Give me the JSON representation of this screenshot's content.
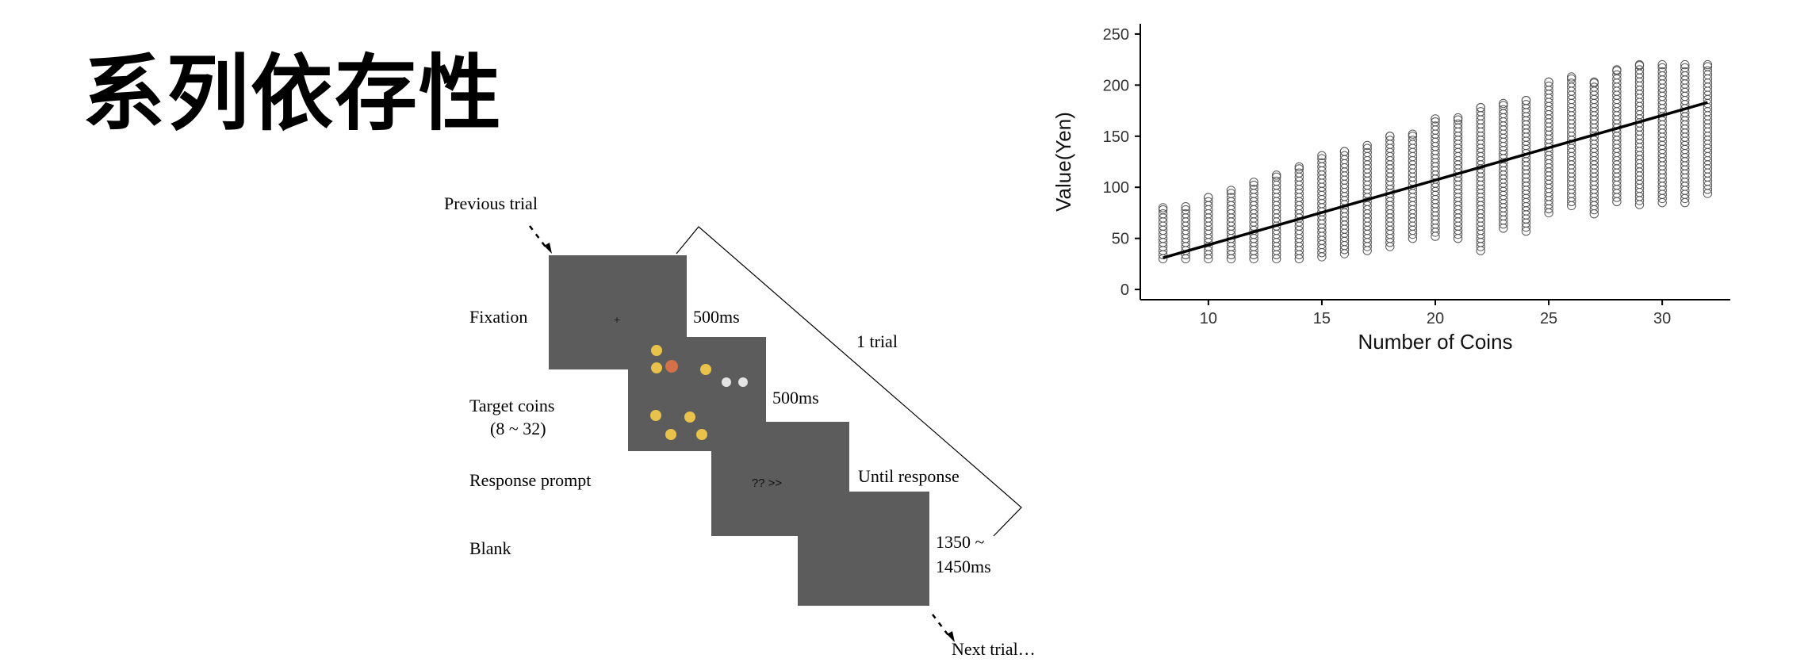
{
  "slide": {
    "title": "系列依存性"
  },
  "diagram": {
    "previous_trial": "Previous trial",
    "next_trial": "Next trial…",
    "one_trial": "1 trial",
    "steps": [
      {
        "label": "Fixation",
        "duration": "500ms",
        "screen_text": "+"
      },
      {
        "label": "Target coins",
        "sublabel": "(8 ~ 32)",
        "duration": "500ms"
      },
      {
        "label": "Response prompt",
        "duration": "Until response",
        "screen_text": "?? >>"
      },
      {
        "label": "Blank",
        "duration_line1": "1350 ~",
        "duration_line2": "1450ms"
      }
    ],
    "screen_color": "#5c5c5c",
    "coin_colors": {
      "gold": "#e8c24a",
      "copper": "#d4704a",
      "silver": "#e4e4e4"
    }
  },
  "chart_data": {
    "type": "scatter",
    "xlabel": "Number of Coins",
    "ylabel": "Value(Yen)",
    "xlim": [
      7,
      33
    ],
    "ylim": [
      -10,
      260
    ],
    "xticks": [
      10,
      15,
      20,
      25,
      30
    ],
    "yticks": [
      0,
      50,
      100,
      150,
      200,
      250
    ],
    "grid": false,
    "point_ranges": [
      {
        "x": 8,
        "ymin": 30,
        "ymax": 80
      },
      {
        "x": 9,
        "ymin": 30,
        "ymax": 81
      },
      {
        "x": 10,
        "ymin": 30,
        "ymax": 90
      },
      {
        "x": 11,
        "ymin": 30,
        "ymax": 97
      },
      {
        "x": 12,
        "ymin": 30,
        "ymax": 105
      },
      {
        "x": 13,
        "ymin": 30,
        "ymax": 112
      },
      {
        "x": 14,
        "ymin": 30,
        "ymax": 120
      },
      {
        "x": 15,
        "ymin": 32,
        "ymax": 131
      },
      {
        "x": 16,
        "ymin": 35,
        "ymax": 135
      },
      {
        "x": 17,
        "ymin": 38,
        "ymax": 141
      },
      {
        "x": 18,
        "ymin": 42,
        "ymax": 150
      },
      {
        "x": 19,
        "ymin": 50,
        "ymax": 152
      },
      {
        "x": 20,
        "ymin": 52,
        "ymax": 167
      },
      {
        "x": 21,
        "ymin": 50,
        "ymax": 168
      },
      {
        "x": 22,
        "ymin": 38,
        "ymax": 178
      },
      {
        "x": 23,
        "ymin": 60,
        "ymax": 182
      },
      {
        "x": 24,
        "ymin": 57,
        "ymax": 185
      },
      {
        "x": 25,
        "ymin": 75,
        "ymax": 203
      },
      {
        "x": 26,
        "ymin": 82,
        "ymax": 208
      },
      {
        "x": 27,
        "ymin": 74,
        "ymax": 203
      },
      {
        "x": 28,
        "ymin": 86,
        "ymax": 215
      },
      {
        "x": 29,
        "ymin": 83,
        "ymax": 220
      },
      {
        "x": 30,
        "ymin": 85,
        "ymax": 220
      },
      {
        "x": 31,
        "ymin": 85,
        "ymax": 220
      },
      {
        "x": 32,
        "ymin": 94,
        "ymax": 220
      }
    ],
    "fit_line": {
      "x": [
        8,
        32
      ],
      "y": [
        31,
        183
      ]
    },
    "marker_color": "#555555",
    "line_color": "#000000"
  }
}
